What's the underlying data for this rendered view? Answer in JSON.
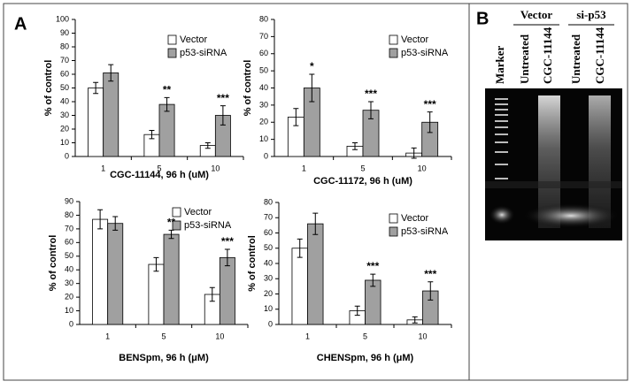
{
  "chart_data": [
    {
      "type": "bar",
      "x_label": "CGC-11144, 96 h (uM)",
      "y_label": "% of control",
      "categories": [
        "1",
        "5",
        "10"
      ],
      "series": [
        {
          "name": "Vector",
          "color": "#ffffff",
          "values": [
            50,
            16,
            8
          ],
          "errors": [
            4,
            3,
            2
          ]
        },
        {
          "name": "p53-siRNA",
          "color": "#a0a0a0",
          "values": [
            61,
            38,
            30
          ],
          "errors": [
            6,
            5,
            7
          ]
        }
      ],
      "annotations": [
        null,
        "**",
        "***"
      ],
      "ylim": [
        0,
        100
      ],
      "yticks": [
        0,
        10,
        20,
        30,
        40,
        50,
        60,
        70,
        80,
        90,
        100
      ]
    },
    {
      "type": "bar",
      "x_label": "CGC-11172, 96 h (uM)",
      "y_label": "% of control",
      "categories": [
        "1",
        "5",
        "10"
      ],
      "series": [
        {
          "name": "Vector",
          "color": "#ffffff",
          "values": [
            23,
            6,
            2
          ],
          "errors": [
            5,
            2,
            3
          ]
        },
        {
          "name": "p53-siRNA",
          "color": "#a0a0a0",
          "values": [
            40,
            27,
            20
          ],
          "errors": [
            8,
            5,
            6
          ]
        }
      ],
      "annotations": [
        "*",
        "***",
        "***"
      ],
      "ylim": [
        0,
        80
      ],
      "yticks": [
        0,
        10,
        20,
        30,
        40,
        50,
        60,
        70,
        80
      ]
    },
    {
      "type": "bar",
      "x_label": "BENSpm, 96 h (μM)",
      "y_label": "% of control",
      "categories": [
        "1",
        "5",
        "10"
      ],
      "series": [
        {
          "name": "Vector",
          "color": "#ffffff",
          "values": [
            77,
            44,
            22
          ],
          "errors": [
            7,
            5,
            5
          ]
        },
        {
          "name": "p53-siRNA",
          "color": "#a0a0a0",
          "values": [
            74,
            66,
            49
          ],
          "errors": [
            5,
            3,
            6
          ]
        }
      ],
      "annotations": [
        null,
        "**",
        "***"
      ],
      "ylim": [
        0,
        90
      ],
      "yticks": [
        0,
        10,
        20,
        30,
        40,
        50,
        60,
        70,
        80,
        90
      ]
    },
    {
      "type": "bar",
      "x_label": "CHENSpm, 96 h (μM)",
      "y_label": "% of control",
      "categories": [
        "1",
        "5",
        "10"
      ],
      "series": [
        {
          "name": "Vector",
          "color": "#ffffff",
          "values": [
            50,
            9,
            3
          ],
          "errors": [
            6,
            3,
            2
          ]
        },
        {
          "name": "p53-siRNA",
          "color": "#a0a0a0",
          "values": [
            66,
            29,
            22
          ],
          "errors": [
            7,
            4,
            6
          ]
        }
      ],
      "annotations": [
        null,
        "***",
        "***"
      ],
      "ylim": [
        0,
        80
      ],
      "yticks": [
        0,
        10,
        20,
        30,
        40,
        50,
        60,
        70,
        80
      ]
    }
  ],
  "figure": {
    "panel_a": "A",
    "panel_b": "B",
    "gel": {
      "marker": "Marker",
      "groups": [
        {
          "label": "Vector",
          "lanes": [
            "Untreated",
            "CGC-11144"
          ]
        },
        {
          "label": "si-p53",
          "lanes": [
            "Untreated",
            "CGC-11144"
          ]
        }
      ]
    }
  }
}
